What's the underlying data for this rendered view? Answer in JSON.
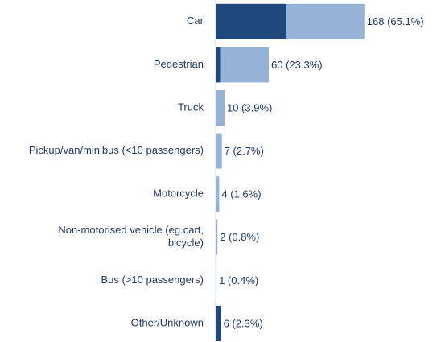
{
  "chart_data": {
    "type": "stacked-barh",
    "categories": [
      "Car",
      "Pedestrian",
      "Truck",
      "Pickup/van/minibus (<10 passengers)",
      "Motorcycle",
      [
        "Non-motorised vehicle (eg.cart,",
        "bicycle)"
      ],
      "Bus (>10 passengers)",
      "Other/Unknown"
    ],
    "series": [
      {
        "color": "#1f497d",
        "values": [
          80,
          5,
          0,
          0,
          0,
          0,
          0,
          6
        ]
      },
      {
        "color": "#95b3d7",
        "values": [
          88,
          55,
          10,
          7,
          4,
          2,
          1,
          0
        ]
      }
    ],
    "value_labels": [
      "168  (65.1%)",
      "60  (23.3%)",
      "10  (3.9%)",
      "7  (2.7%)",
      "4  (1.6%)",
      "2  (0.8%)",
      "1  (0.4%)",
      "6  (2.3%)"
    ]
  }
}
